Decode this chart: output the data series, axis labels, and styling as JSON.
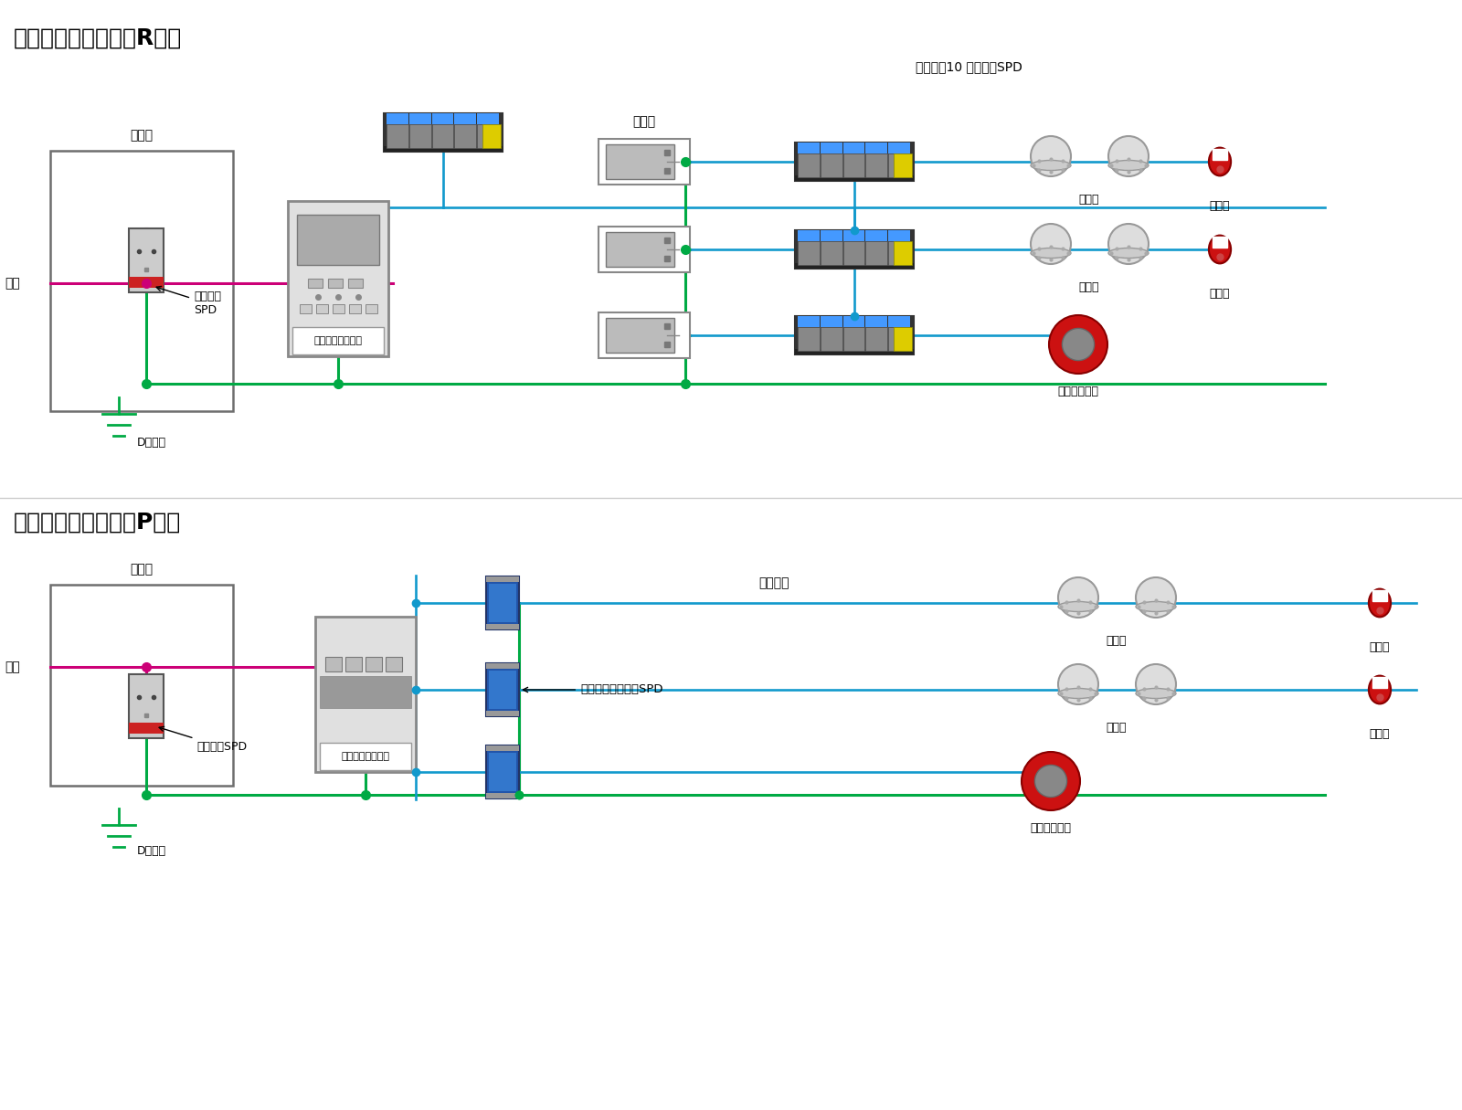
{
  "title_r": "自動火災報知設備（R型）",
  "title_p": "自動火災報知設備（P型）",
  "bg_color": "#ffffff",
  "line_green": "#00aa44",
  "line_blue": "#1199cc",
  "line_magenta": "#cc0077",
  "text_color": "#000000",
  "label_font_size": 11,
  "title_font_size": 18,
  "labels_r": {
    "dengen": "電源",
    "bundenban": "分電盤",
    "spd_label": "分電盤用\nSPD",
    "chukei": "中継器",
    "aresta": "アレスタ10 多回線用SPD",
    "kanchi1": "感知器",
    "kanchi2": "感知器",
    "hasshin1": "発信器",
    "hasshin2": "発信器",
    "chiiku": "地区音響装置",
    "d_setchi1": "D種接地",
    "fire_panel": "火災報知器受信機"
  },
  "labels_p": {
    "dengen": "電源",
    "bundenban": "分電盤",
    "spd_label": "分電盤用SPD",
    "chuki_label": "大電流信号回線用SPD",
    "bousai": "防災信号",
    "kanchi1": "感知器",
    "kanchi2": "感知器",
    "hasshin1": "発信器",
    "hasshin2": "発信器",
    "chiiku": "地区音響装置",
    "d_setchi": "D種接地",
    "fire_panel": "火災報知器受信機"
  }
}
